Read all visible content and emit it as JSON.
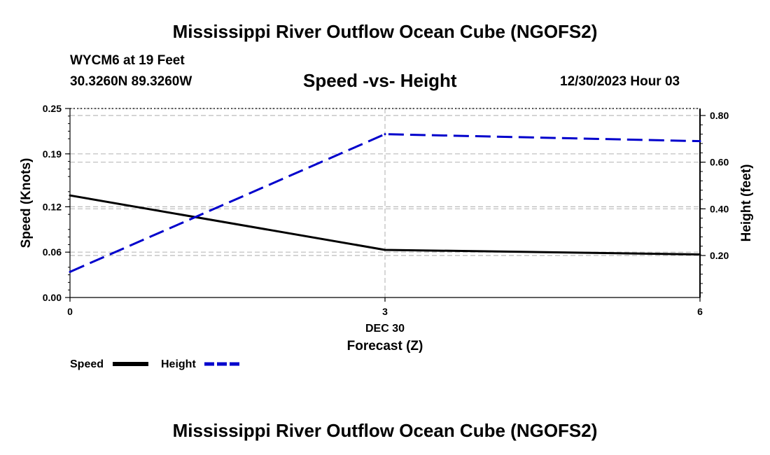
{
  "header": {
    "title": "Mississippi River Outflow Ocean Cube (NGOFS2)",
    "station": "WYCM6 at 19 Feet",
    "coords": "30.3260N  89.3260W",
    "plot_title": "Speed -vs- Height",
    "datetime": "12/30/2023 Hour 03"
  },
  "footer": {
    "title": "Mississippi River Outflow Ocean Cube (NGOFS2)"
  },
  "chart_data": {
    "type": "line",
    "title": "Speed -vs- Height",
    "xlabel": "Forecast (Z)",
    "x_date_label": "DEC 30",
    "x": [
      0,
      3,
      6
    ],
    "xlim": [
      0,
      6
    ],
    "x_ticks": [
      "0",
      "3",
      "6"
    ],
    "y_left": {
      "label": "Speed (Knots)",
      "lim": [
        0,
        0.25
      ],
      "ticks": [
        0,
        0.06,
        0.12,
        0.19,
        0.25
      ],
      "tick_labels": [
        "0.00",
        "0.06",
        "0.12",
        "0.19",
        "0.25"
      ]
    },
    "y_right": {
      "label": "Height (feet)",
      "lim": [
        0.02,
        0.83
      ],
      "ticks": [
        0.2,
        0.4,
        0.6,
        0.8
      ],
      "tick_labels": [
        "0.20",
        "0.40",
        "0.60",
        "0.80"
      ]
    },
    "series": [
      {
        "name": "Speed",
        "axis": "left",
        "style": "solid",
        "color": "#000000",
        "values": [
          0.135,
          0.063,
          0.057
        ]
      },
      {
        "name": "Height",
        "axis": "right",
        "style": "dashed",
        "color": "#0000cc",
        "values": [
          0.13,
          0.72,
          0.69
        ]
      }
    ],
    "grid": true,
    "legend": {
      "position": "bottom-left",
      "entries": [
        "Speed",
        "Height"
      ]
    }
  }
}
